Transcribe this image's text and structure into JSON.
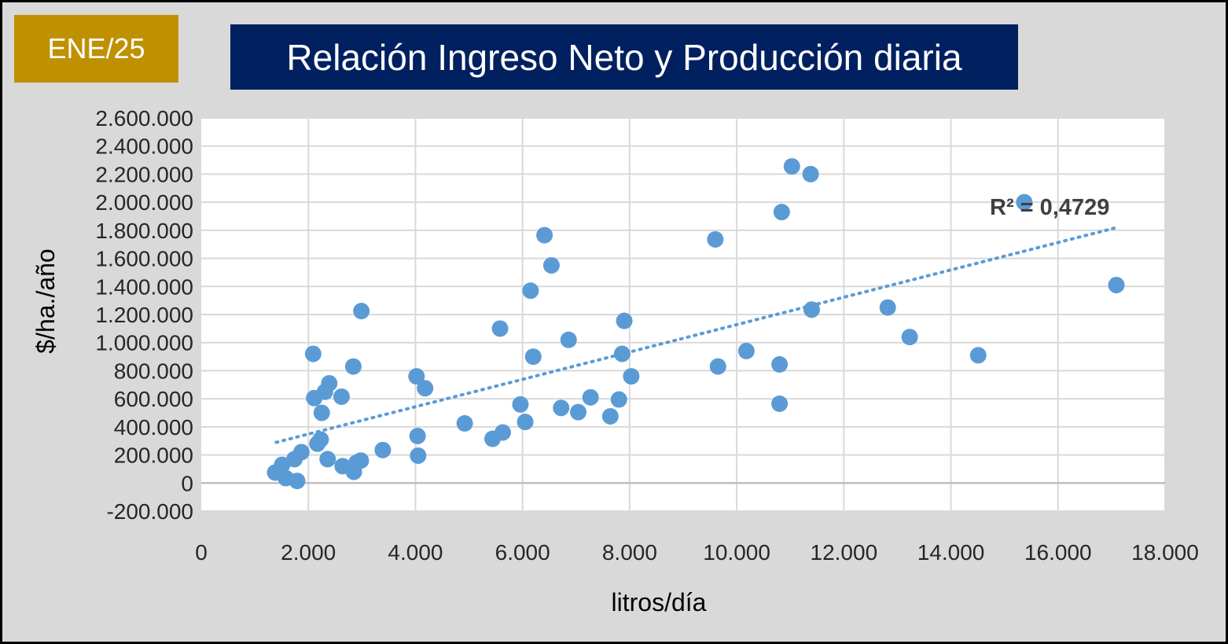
{
  "badge": {
    "text": "ENE/25",
    "color": "#bf9000"
  },
  "header": {
    "title": "Relación Ingreso Neto y Producción diaria",
    "color": "#002060"
  },
  "theme": {
    "panel_background": "#d9d9d9",
    "plot_background": "#ffffff",
    "point_color": "#5b9bd5",
    "trend_color": "#5b9bd5"
  },
  "chart_data": {
    "type": "scatter",
    "title": "Relación Ingreso Neto y Producción diaria",
    "xlabel": "litros/día",
    "ylabel": "$/ha./año",
    "xlim": [
      0,
      18000
    ],
    "ylim": [
      -200000,
      2600000
    ],
    "grid": true,
    "x_ticks": [
      0,
      2000,
      4000,
      6000,
      8000,
      10000,
      12000,
      14000,
      16000,
      18000
    ],
    "x_tick_labels": [
      "0",
      "2.000",
      "4.000",
      "6.000",
      "8.000",
      "10.000",
      "12.000",
      "14.000",
      "16.000",
      "18.000"
    ],
    "y_ticks": [
      -200000,
      0,
      200000,
      400000,
      600000,
      800000,
      1000000,
      1200000,
      1400000,
      1600000,
      1800000,
      2000000,
      2200000,
      2400000,
      2600000
    ],
    "y_tick_labels": [
      "-200.000",
      "0",
      "200.000",
      "400.000",
      "600.000",
      "800.000",
      "1.000.000",
      "1.200.000",
      "1.400.000",
      "1.600.000",
      "1.800.000",
      "2.000.000",
      "2.200.000",
      "2.400.000",
      "2.600.000"
    ],
    "series": [
      {
        "points": [
          [
            1380,
            75000
          ],
          [
            1510,
            130000
          ],
          [
            1580,
            35000
          ],
          [
            1790,
            15000
          ],
          [
            1740,
            170000
          ],
          [
            1870,
            220000
          ],
          [
            2090,
            920000
          ],
          [
            2110,
            605000
          ],
          [
            2170,
            280000
          ],
          [
            2230,
            310000
          ],
          [
            2250,
            500000
          ],
          [
            2310,
            650000
          ],
          [
            2390,
            710000
          ],
          [
            2360,
            170000
          ],
          [
            2620,
            615000
          ],
          [
            2640,
            120000
          ],
          [
            2840,
            830000
          ],
          [
            2850,
            80000
          ],
          [
            2900,
            145000
          ],
          [
            2980,
            160000
          ],
          [
            2990,
            1225000
          ],
          [
            3390,
            235000
          ],
          [
            4020,
            760000
          ],
          [
            4040,
            335000
          ],
          [
            4050,
            195000
          ],
          [
            4180,
            675000
          ],
          [
            4920,
            425000
          ],
          [
            5440,
            315000
          ],
          [
            5580,
            1100000
          ],
          [
            5630,
            360000
          ],
          [
            5960,
            560000
          ],
          [
            6050,
            435000
          ],
          [
            6150,
            1370000
          ],
          [
            6200,
            900000
          ],
          [
            6410,
            1765000
          ],
          [
            6540,
            1550000
          ],
          [
            6720,
            535000
          ],
          [
            6860,
            1020000
          ],
          [
            7040,
            505000
          ],
          [
            7270,
            610000
          ],
          [
            7640,
            475000
          ],
          [
            7800,
            595000
          ],
          [
            7860,
            920000
          ],
          [
            7900,
            1155000
          ],
          [
            8030,
            760000
          ],
          [
            9600,
            1735000
          ],
          [
            9650,
            830000
          ],
          [
            10180,
            940000
          ],
          [
            10800,
            845000
          ],
          [
            10800,
            565000
          ],
          [
            10840,
            1930000
          ],
          [
            11030,
            2255000
          ],
          [
            11380,
            2200000
          ],
          [
            11400,
            1235000
          ],
          [
            12820,
            1250000
          ],
          [
            13230,
            1040000
          ],
          [
            14510,
            910000
          ],
          [
            15370,
            2000000
          ],
          [
            17090,
            1410000
          ]
        ]
      }
    ],
    "trendline": {
      "type": "linear",
      "x_range": [
        1400,
        17100
      ],
      "y_range": [
        290000,
        1820000
      ],
      "label": "R² = 0,4729"
    }
  }
}
